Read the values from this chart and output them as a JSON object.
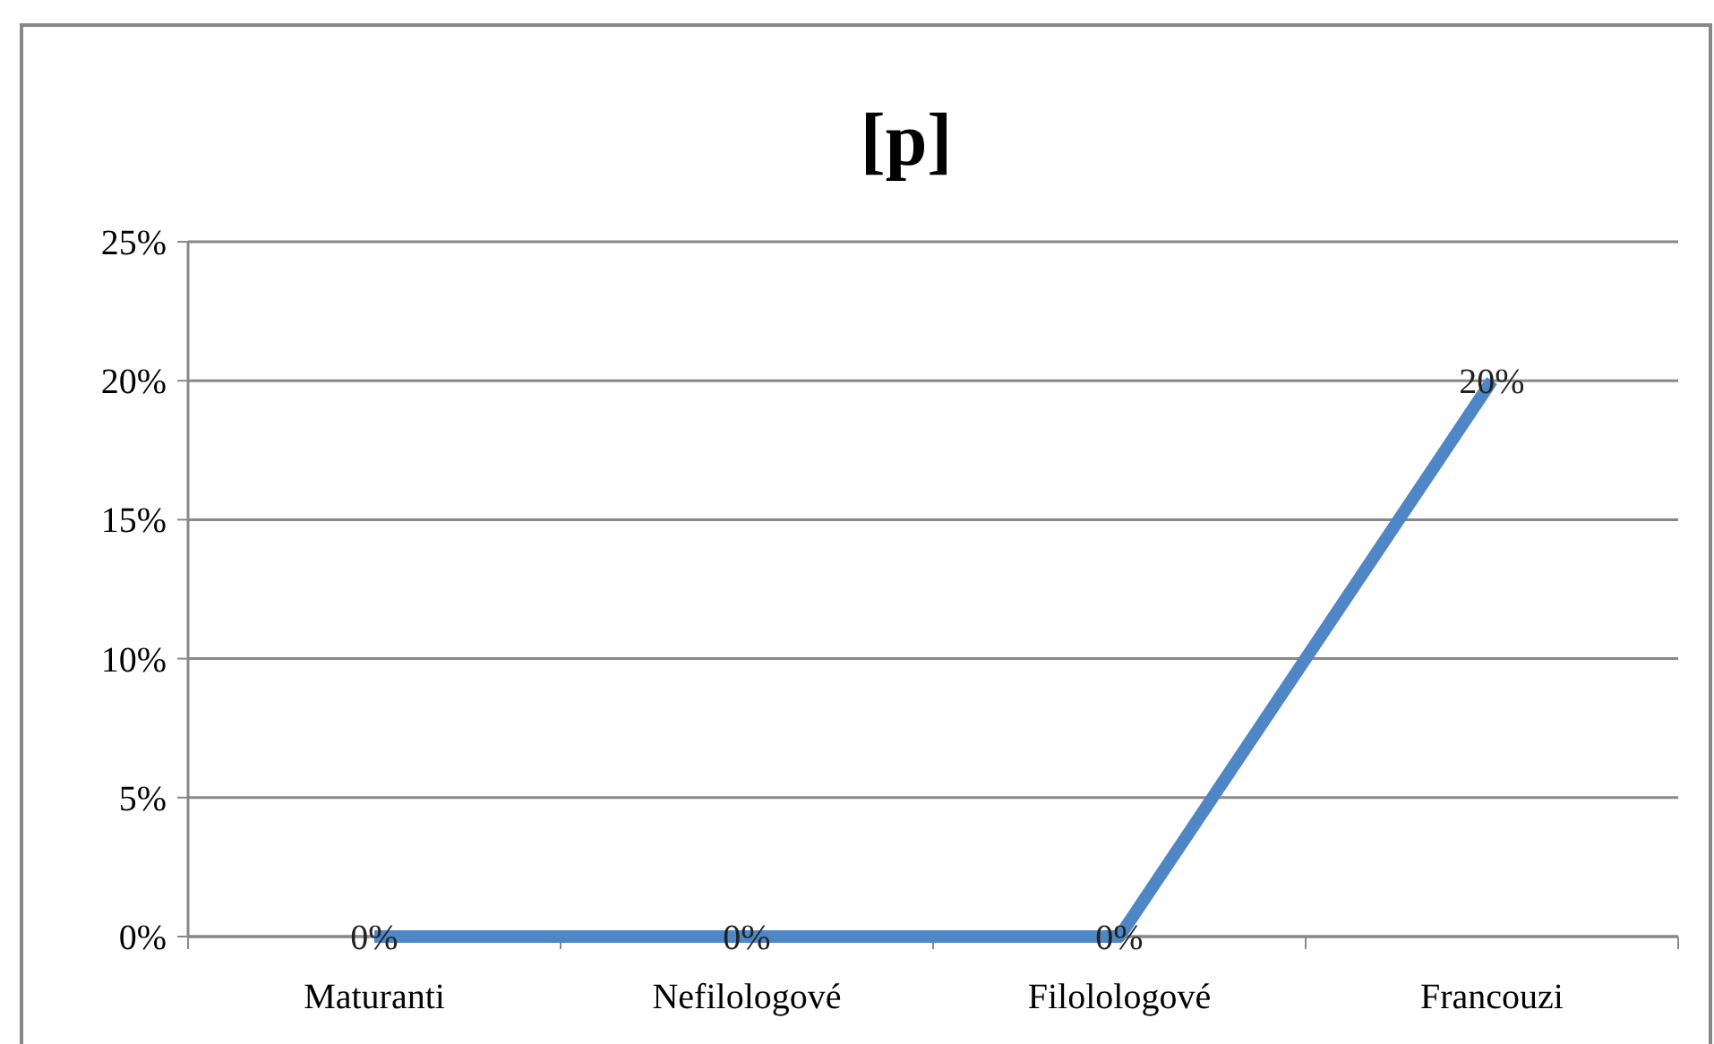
{
  "chart_data": {
    "type": "line",
    "title": "[p]",
    "categories": [
      "Maturanti",
      "Nefilologové",
      "Filolologové",
      "Francouzi"
    ],
    "series": [
      {
        "color": "#4f86c6",
        "values": [
          0,
          0,
          0,
          20
        ],
        "value_labels": [
          "0%",
          "0%",
          "0%",
          "20%"
        ]
      }
    ],
    "ylim": [
      0,
      25
    ],
    "yticks": [
      {
        "value": 0,
        "label": "0%"
      },
      {
        "value": 5,
        "label": "5%"
      },
      {
        "value": 10,
        "label": "10%"
      },
      {
        "value": 15,
        "label": "15%"
      },
      {
        "value": 20,
        "label": "20%"
      },
      {
        "value": 25,
        "label": "25%"
      }
    ],
    "grid": "y",
    "marker": "none",
    "line_style": "solid"
  }
}
